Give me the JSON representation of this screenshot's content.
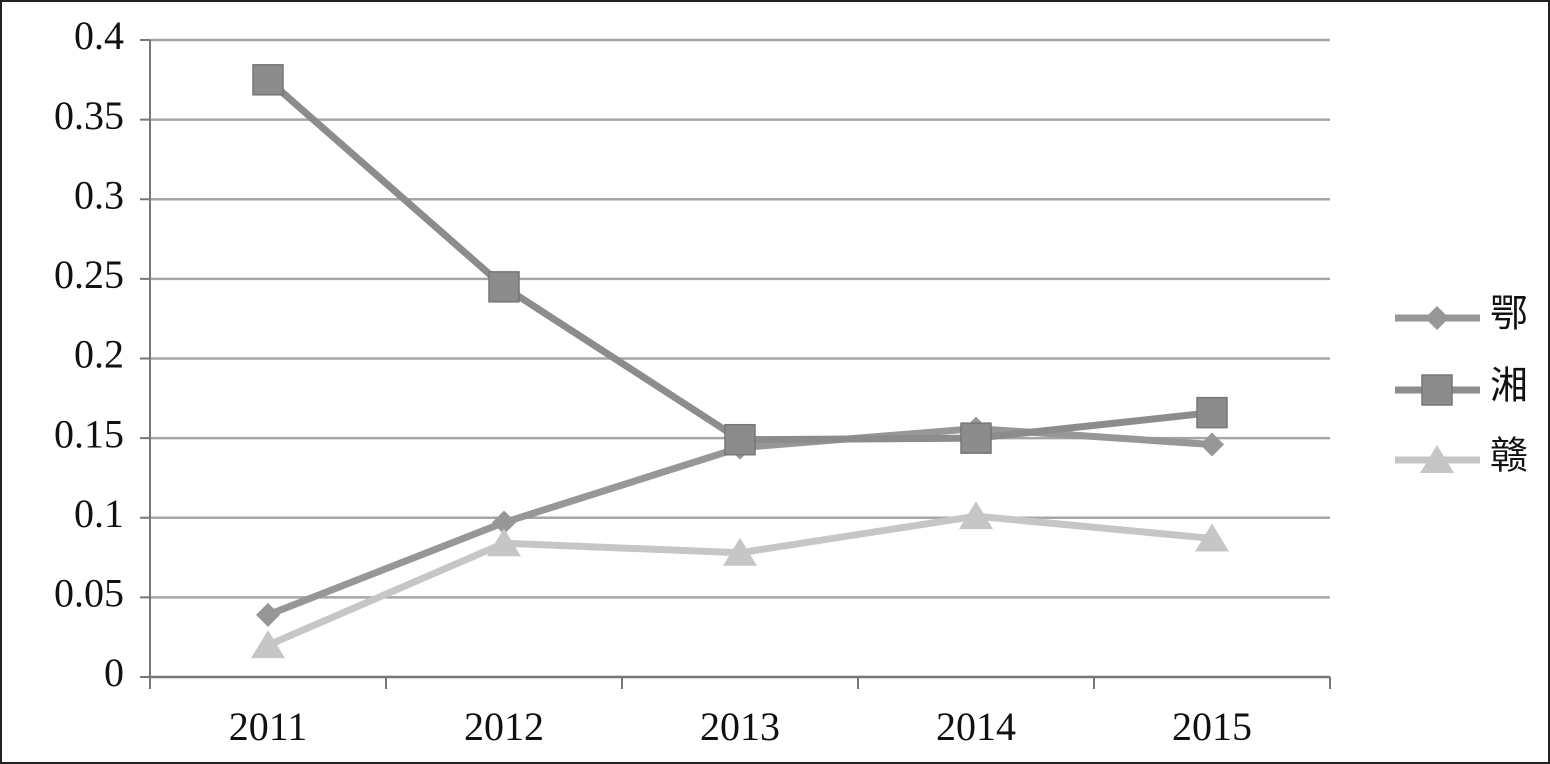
{
  "chart_data": {
    "type": "line",
    "categories": [
      "2011",
      "2012",
      "2013",
      "2014",
      "2015"
    ],
    "series": [
      {
        "name": "鄂",
        "color": "#979797",
        "marker": "diamond",
        "values": [
          0.039,
          0.097,
          0.144,
          0.156,
          0.146
        ]
      },
      {
        "name": "湘",
        "color": "#8c8c8c",
        "marker": "square",
        "values": [
          0.375,
          0.245,
          0.149,
          0.15,
          0.166
        ]
      },
      {
        "name": "赣",
        "color": "#c6c6c6",
        "marker": "triangle",
        "values": [
          0.02,
          0.084,
          0.078,
          0.101,
          0.087
        ]
      }
    ],
    "ylim": [
      0,
      0.4
    ],
    "yticks": [
      0,
      0.05,
      0.1,
      0.15,
      0.2,
      0.25,
      0.3,
      0.35,
      0.4
    ],
    "grid": true,
    "legend": "right"
  }
}
